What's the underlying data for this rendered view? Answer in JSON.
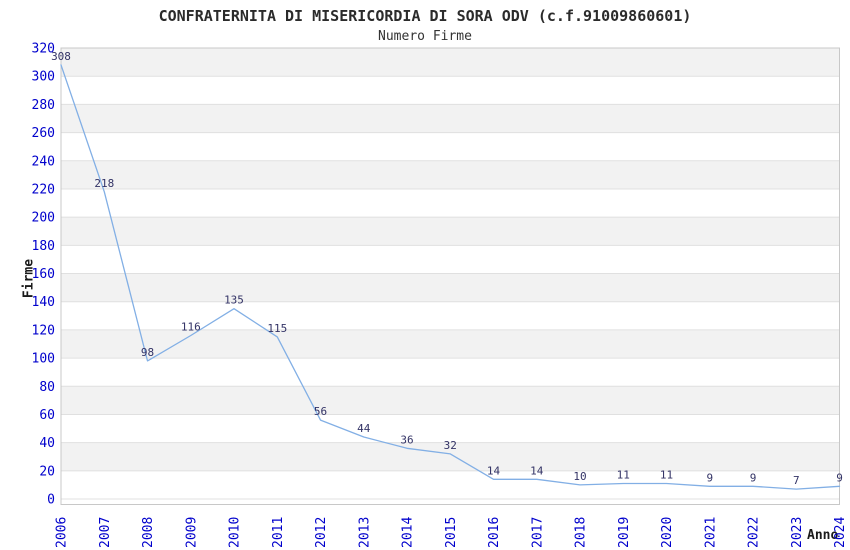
{
  "title": "CONFRATERNITA DI MISERICORDIA DI SORA ODV (c.f.91009860601)",
  "subtitle": "Numero Firme",
  "chart_data": {
    "type": "line",
    "title": "CONFRATERNITA DI MISERICORDIA DI SORA ODV (c.f.91009860601)",
    "subtitle": "Numero Firme",
    "xlabel": "Anno",
    "ylabel": "Firme",
    "x": [
      "2006",
      "2007",
      "2008",
      "2009",
      "2010",
      "2011",
      "2012",
      "2013",
      "2014",
      "2015",
      "2016",
      "2017",
      "2018",
      "2019",
      "2020",
      "2021",
      "2022",
      "2023",
      "2024"
    ],
    "values": [
      308,
      218,
      98,
      116,
      135,
      115,
      56,
      44,
      36,
      32,
      14,
      14,
      10,
      11,
      11,
      9,
      9,
      7,
      9
    ],
    "ylim": [
      0,
      320
    ],
    "ytick_step": 20,
    "yticks": [
      0,
      20,
      40,
      60,
      80,
      100,
      120,
      140,
      160,
      180,
      200,
      220,
      240,
      260,
      280,
      300,
      320
    ],
    "grid": "alternating-horizontal-bands",
    "legend": "none",
    "colors": {
      "line": "#82afe5",
      "tick_label": "#0000cc",
      "data_label": "#333366",
      "band": "#f2f2f2",
      "grid_line": "#e0e0e0",
      "plot_border": "#c8c8c8",
      "title": "#2b2b2b"
    }
  }
}
